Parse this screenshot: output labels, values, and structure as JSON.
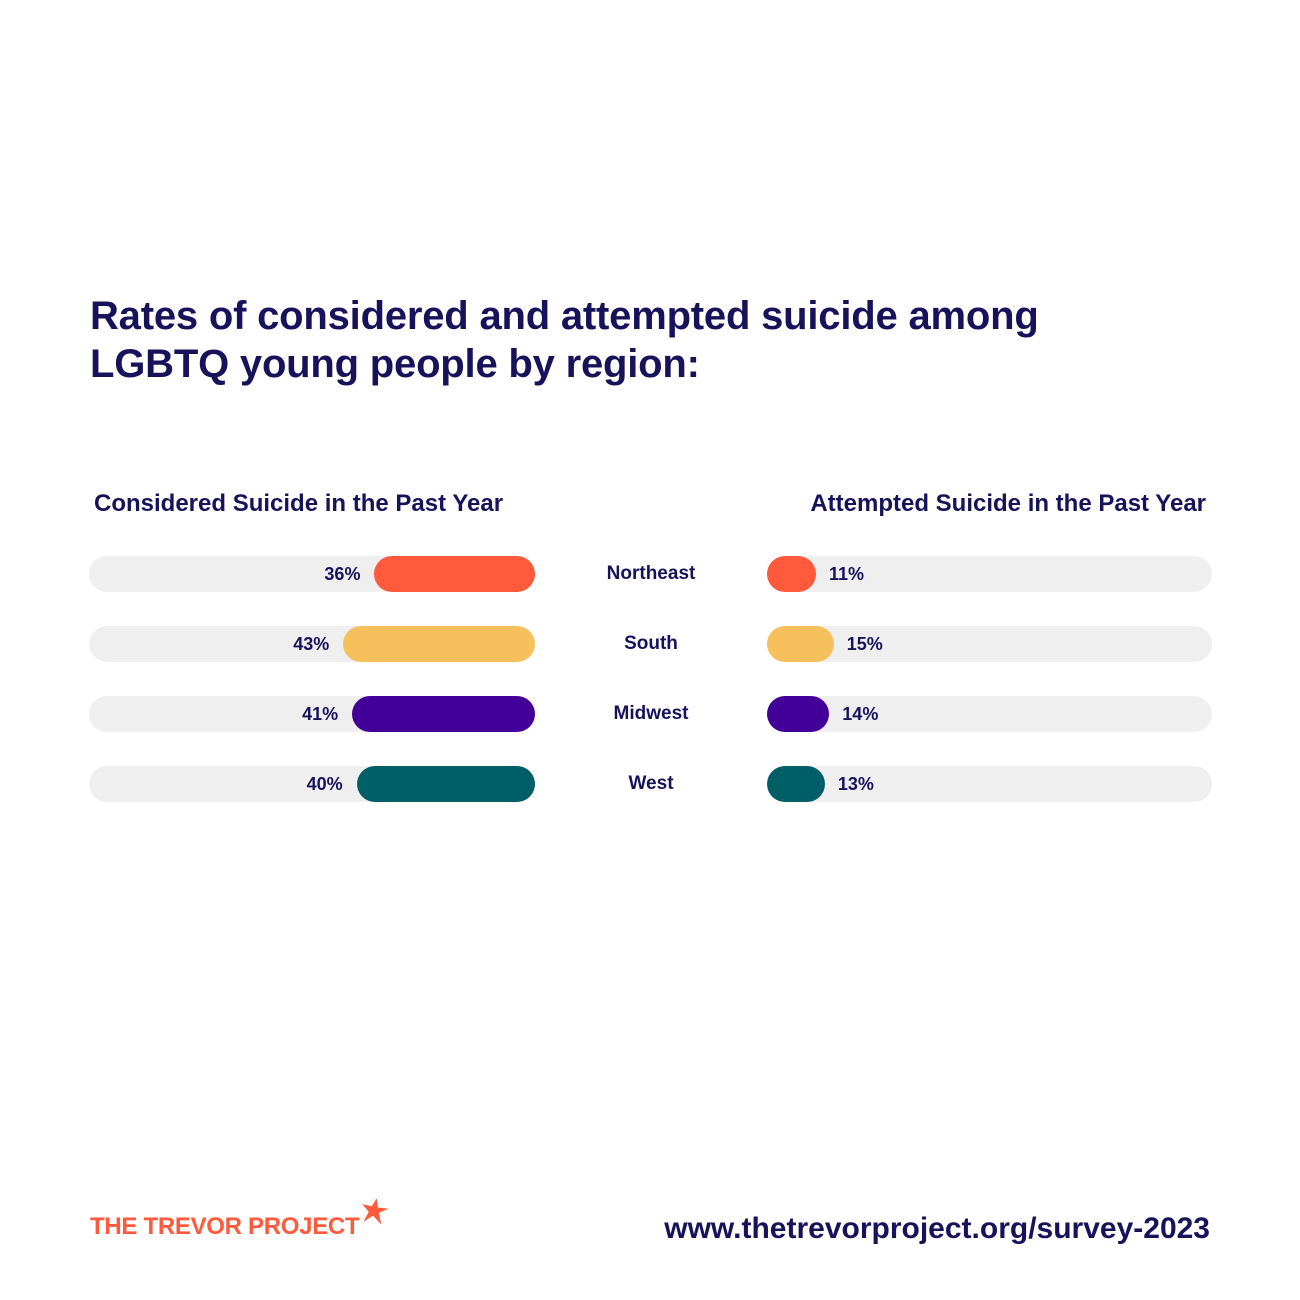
{
  "title_lines": [
    "Rates of considered and attempted suicide among",
    "LGBTQ young people by region:"
  ],
  "colors": {
    "text": "#17125a",
    "track": "#efefef",
    "northeast": "#ff5a3c",
    "south": "#f6c05c",
    "midwest": "#420099",
    "west": "#005f66",
    "logo": "#ff5a3c"
  },
  "chart_data": {
    "type": "bar",
    "title": "Rates of considered and attempted suicide among LGBTQ young people by region:",
    "categories": [
      "Northeast",
      "South",
      "Midwest",
      "West"
    ],
    "series": [
      {
        "name": "Considered Suicide in the Past Year",
        "values": [
          36,
          43,
          41,
          40
        ],
        "labels": [
          "36%",
          "43%",
          "41%",
          "40%"
        ]
      },
      {
        "name": "Attempted Suicide in the Past Year",
        "values": [
          11,
          15,
          14,
          13
        ],
        "labels": [
          "11%",
          "15%",
          "14%",
          "13%"
        ]
      }
    ],
    "ylim": [
      0,
      100
    ],
    "orientation": "horizontal, mirrored",
    "grid": false
  },
  "footer": {
    "logo_text": "THE TREVOR PROJECT",
    "logo_icon": "star-icon",
    "url": "www.thetrevorproject.org/survey-2023"
  }
}
